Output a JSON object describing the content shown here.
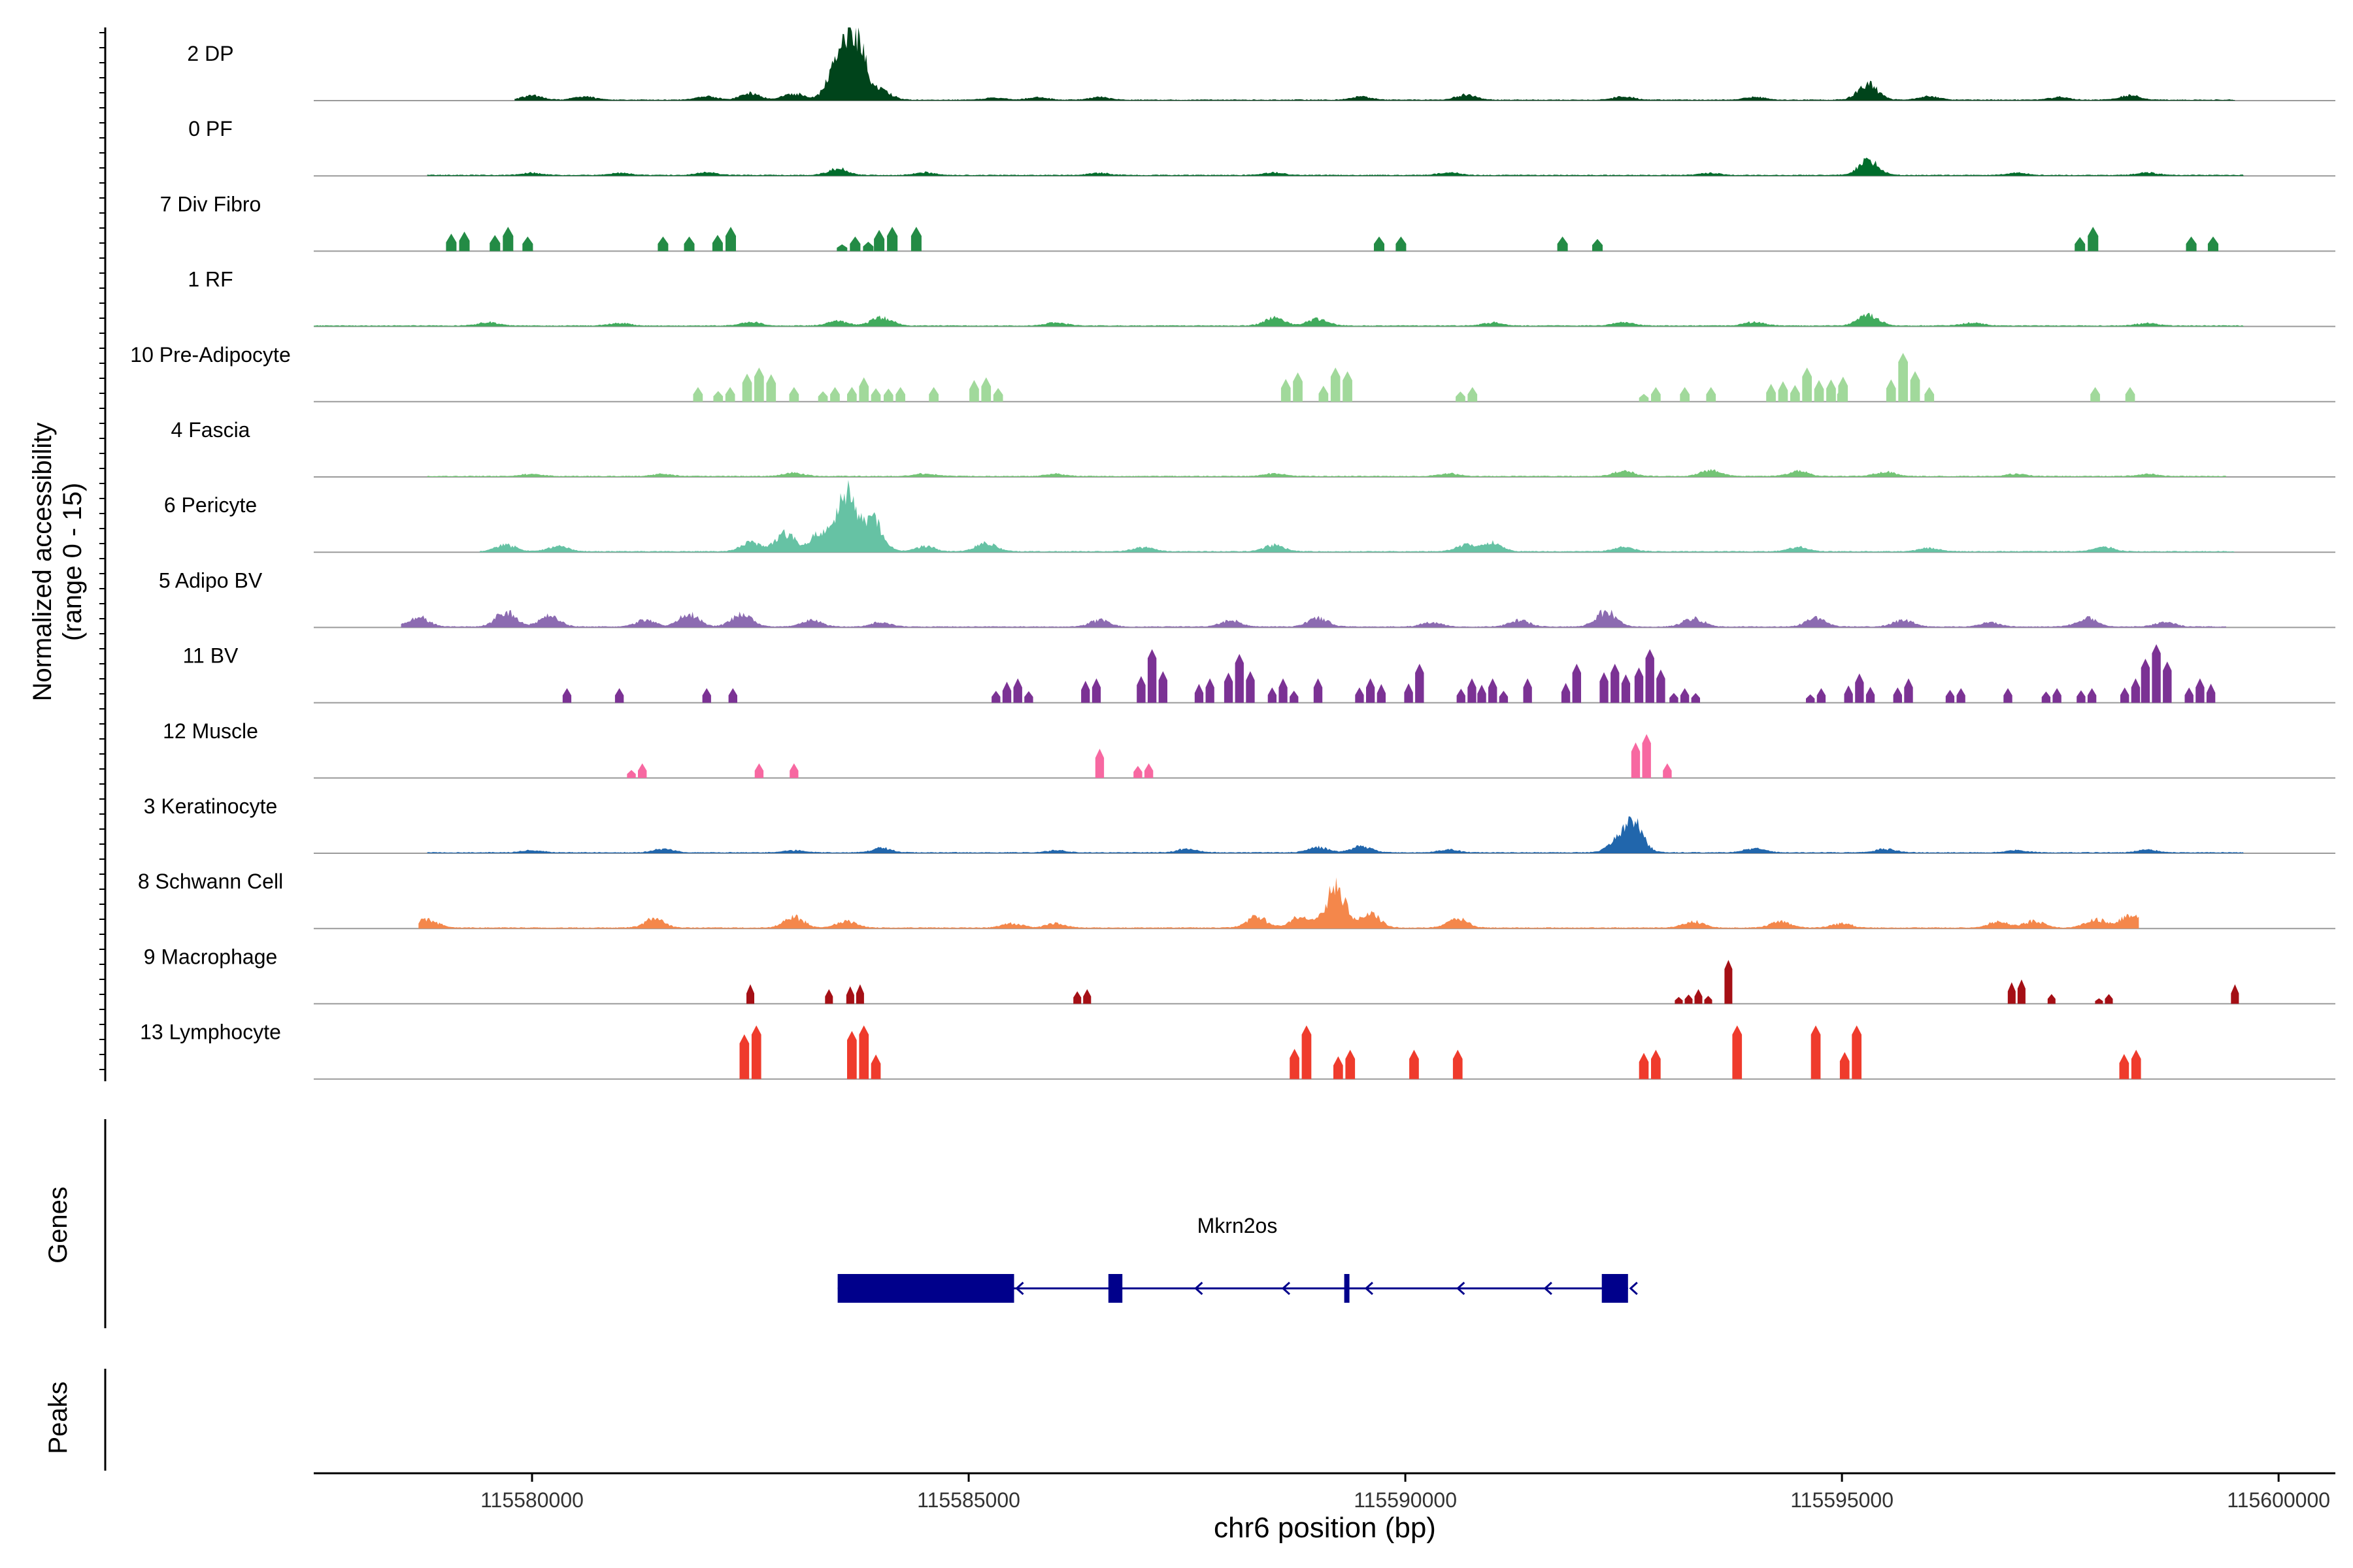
{
  "chart_data": {
    "type": "area",
    "title": "",
    "ylabel_line1": "Normalized accessibility",
    "ylabel_line2": "(range 0 - 15)",
    "y_range": [
      0,
      15
    ],
    "xlabel": "chr6 position (bp)",
    "x_range": [
      115577500,
      115600650
    ],
    "x_ticks": [
      115580000,
      115585000,
      115590000,
      115595000,
      115600000
    ],
    "x_tick_labels": [
      "115580000",
      "115585000",
      "115590000",
      "115595000",
      "115600000"
    ],
    "genes_label": "Genes",
    "peaks_label": "Peaks",
    "tracks": [
      {
        "name": "2 DP",
        "color": "#00441b",
        "mode": "cont",
        "start": 115579800,
        "end": 115599500,
        "clusters": [
          [
            115580000,
            1.0
          ],
          [
            115580600,
            0.8
          ],
          [
            115582000,
            0.8
          ],
          [
            115582500,
            1.5
          ],
          [
            115583000,
            1.5
          ],
          [
            115583500,
            8.0
          ],
          [
            115583700,
            14.0
          ],
          [
            115584000,
            2.0
          ],
          [
            115585300,
            0.5
          ],
          [
            115585800,
            0.6
          ],
          [
            115586500,
            0.6
          ],
          [
            115589500,
            0.7
          ],
          [
            115590700,
            1.2
          ],
          [
            115592500,
            0.8
          ],
          [
            115594000,
            0.7
          ],
          [
            115595300,
            3.5
          ],
          [
            115596000,
            0.8
          ],
          [
            115597500,
            0.6
          ],
          [
            115598300,
            1.0
          ]
        ]
      },
      {
        "name": "0 PF",
        "color": "#006d2c",
        "mode": "cont",
        "start": 115578800,
        "end": 115599600,
        "clusters": [
          [
            115580000,
            0.5
          ],
          [
            115581000,
            0.5
          ],
          [
            115582000,
            0.6
          ],
          [
            115583500,
            1.5
          ],
          [
            115584500,
            0.6
          ],
          [
            115586500,
            0.5
          ],
          [
            115588500,
            0.6
          ],
          [
            115590500,
            0.6
          ],
          [
            115593500,
            0.5
          ],
          [
            115595300,
            3.5
          ],
          [
            115597000,
            0.5
          ],
          [
            115598500,
            0.6
          ]
        ]
      },
      {
        "name": "7 Div Fibro",
        "color": "#238b45",
        "mode": "blocks",
        "width": 120,
        "clusters": [
          [
            115579150,
            4.0,
            2
          ],
          [
            115579650,
            5.0,
            2
          ],
          [
            115579950,
            3.0,
            1
          ],
          [
            115581500,
            3.0,
            1
          ],
          [
            115581800,
            3.0,
            1
          ],
          [
            115582200,
            5.0,
            2
          ],
          [
            115583700,
            3.0,
            3
          ],
          [
            115584050,
            5.0,
            2
          ],
          [
            115584400,
            5.0,
            1
          ],
          [
            115589700,
            3.0,
            1
          ],
          [
            115589950,
            3.0,
            1
          ],
          [
            115591800,
            3.0,
            1
          ],
          [
            115592200,
            2.5,
            1
          ],
          [
            115597800,
            5.0,
            2
          ],
          [
            115599000,
            3.0,
            1
          ],
          [
            115599250,
            3.0,
            1
          ]
        ]
      },
      {
        "name": "1 RF",
        "color": "#41ab5d",
        "mode": "cont",
        "start": 115577500,
        "end": 115599600,
        "clusters": [
          [
            115579500,
            0.8
          ],
          [
            115581000,
            0.6
          ],
          [
            115582500,
            0.8
          ],
          [
            115583500,
            1.0
          ],
          [
            115584000,
            2.0
          ],
          [
            115586000,
            0.7
          ],
          [
            115588500,
            1.8
          ],
          [
            115589000,
            1.5
          ],
          [
            115591000,
            0.7
          ],
          [
            115592500,
            0.8
          ],
          [
            115594000,
            0.8
          ],
          [
            115595300,
            2.5
          ],
          [
            115596500,
            0.7
          ],
          [
            115598500,
            0.6
          ]
        ]
      },
      {
        "name": "10 Pre-Adipocyte",
        "color": "#a1d99b",
        "mode": "blocks",
        "width": 110,
        "clusters": [
          [
            115581900,
            3.0,
            1
          ],
          [
            115582200,
            3.0,
            2
          ],
          [
            115582600,
            7.0,
            3
          ],
          [
            115583000,
            3.0,
            1
          ],
          [
            115583400,
            3.0,
            2
          ],
          [
            115583800,
            5.0,
            3
          ],
          [
            115584150,
            3.0,
            2
          ],
          [
            115584600,
            3.0,
            1
          ],
          [
            115585200,
            5.0,
            3
          ],
          [
            115588700,
            6.0,
            2
          ],
          [
            115589200,
            7.0,
            3
          ],
          [
            115590700,
            3.0,
            2
          ],
          [
            115592800,
            3.0,
            2
          ],
          [
            115593200,
            3.0,
            1
          ],
          [
            115593500,
            3.0,
            1
          ],
          [
            115594600,
            7.0,
            7
          ],
          [
            115595000,
            3.0,
            1
          ],
          [
            115595700,
            10.0,
            3
          ],
          [
            115596000,
            3.0,
            1
          ],
          [
            115597900,
            3.0,
            1
          ],
          [
            115598300,
            3.0,
            1
          ]
        ]
      },
      {
        "name": "4 Fascia",
        "color": "#74c476",
        "mode": "cont",
        "start": 115578800,
        "end": 115599400,
        "clusters": [
          [
            115580000,
            0.5
          ],
          [
            115581500,
            0.5
          ],
          [
            115583000,
            0.8
          ],
          [
            115584500,
            0.6
          ],
          [
            115586000,
            0.5
          ],
          [
            115588500,
            0.6
          ],
          [
            115590500,
            0.6
          ],
          [
            115592500,
            1.2
          ],
          [
            115593500,
            1.5
          ],
          [
            115594500,
            1.2
          ],
          [
            115595500,
            1.0
          ],
          [
            115597000,
            0.5
          ],
          [
            115598500,
            0.5
          ]
        ]
      },
      {
        "name": "6 Pericyte",
        "color": "#66c2a4",
        "mode": "cont",
        "start": 115579400,
        "end": 115599500,
        "clusters": [
          [
            115579700,
            1.5
          ],
          [
            115580300,
            1.2
          ],
          [
            115582500,
            2.0
          ],
          [
            115582900,
            4.0
          ],
          [
            115583300,
            4.0
          ],
          [
            115583600,
            13.0
          ],
          [
            115583900,
            7.0
          ],
          [
            115584500,
            1.2
          ],
          [
            115585200,
            2.0
          ],
          [
            115587000,
            1.0
          ],
          [
            115588500,
            1.5
          ],
          [
            115590700,
            1.5
          ],
          [
            115591000,
            2.0
          ],
          [
            115592500,
            1.0
          ],
          [
            115594500,
            1.0
          ],
          [
            115596000,
            0.8
          ],
          [
            115598000,
            1.0
          ]
        ]
      },
      {
        "name": "5 Adipo BV",
        "color": "#8c6bb1",
        "mode": "cont",
        "start": 115578500,
        "end": 115599400,
        "clusters": [
          [
            115578700,
            2.5
          ],
          [
            115579700,
            3.5
          ],
          [
            115580200,
            2.5
          ],
          [
            115581300,
            1.5
          ],
          [
            115581800,
            3.0
          ],
          [
            115582400,
            3.0
          ],
          [
            115583200,
            1.5
          ],
          [
            115584000,
            1.0
          ],
          [
            115586500,
            1.5
          ],
          [
            115588000,
            1.5
          ],
          [
            115589000,
            2.0
          ],
          [
            115590300,
            1.0
          ],
          [
            115591300,
            1.5
          ],
          [
            115592300,
            3.5
          ],
          [
            115593300,
            2.0
          ],
          [
            115594700,
            2.0
          ],
          [
            115595700,
            1.5
          ],
          [
            115596700,
            1.0
          ],
          [
            115597800,
            2.0
          ],
          [
            115598700,
            1.0
          ]
        ]
      },
      {
        "name": "11 BV",
        "color": "#7b3294",
        "mode": "blocks",
        "width": 100,
        "clusters": [
          [
            115580400,
            3.0,
            1
          ],
          [
            115581000,
            3.0,
            1
          ],
          [
            115582000,
            3.0,
            1
          ],
          [
            115582300,
            3.0,
            1
          ],
          [
            115585500,
            5.0,
            4
          ],
          [
            115586400,
            5.0,
            2
          ],
          [
            115587100,
            11.0,
            3
          ],
          [
            115587700,
            5.0,
            2
          ],
          [
            115588100,
            10.0,
            3
          ],
          [
            115588600,
            5.0,
            3
          ],
          [
            115589000,
            5.0,
            1
          ],
          [
            115589600,
            5.0,
            3
          ],
          [
            115590100,
            8.0,
            2
          ],
          [
            115590700,
            5.0,
            2
          ],
          [
            115591000,
            5.0,
            3
          ],
          [
            115591400,
            5.0,
            1
          ],
          [
            115591900,
            8.0,
            2
          ],
          [
            115592400,
            8.0,
            3
          ],
          [
            115592800,
            11.0,
            3
          ],
          [
            115593200,
            3.0,
            3
          ],
          [
            115594700,
            3.0,
            2
          ],
          [
            115595200,
            6.0,
            3
          ],
          [
            115595700,
            5.0,
            2
          ],
          [
            115596300,
            3.0,
            2
          ],
          [
            115596900,
            3.0,
            1
          ],
          [
            115597400,
            3.0,
            2
          ],
          [
            115597800,
            3.0,
            2
          ],
          [
            115598300,
            5.0,
            2
          ],
          [
            115598600,
            12.0,
            3
          ],
          [
            115599100,
            5.0,
            3
          ]
        ]
      },
      {
        "name": "12 Muscle",
        "color": "#f768a1",
        "mode": "blocks",
        "width": 100,
        "clusters": [
          [
            115581200,
            3.0,
            2
          ],
          [
            115582600,
            3.0,
            1
          ],
          [
            115583000,
            3.0,
            1
          ],
          [
            115586500,
            6.0,
            1
          ],
          [
            115587000,
            3.0,
            2
          ],
          [
            115592700,
            9.0,
            2
          ],
          [
            115593000,
            3.0,
            1
          ]
        ]
      },
      {
        "name": "3 Keratinocyte",
        "color": "#2166ac",
        "mode": "cont",
        "start": 115578800,
        "end": 115599600,
        "clusters": [
          [
            115580000,
            0.5
          ],
          [
            115581500,
            0.8
          ],
          [
            115583000,
            0.5
          ],
          [
            115584000,
            1.0
          ],
          [
            115586000,
            0.5
          ],
          [
            115587500,
            0.8
          ],
          [
            115589000,
            1.2
          ],
          [
            115589500,
            1.5
          ],
          [
            115590500,
            0.6
          ],
          [
            115592600,
            7.0
          ],
          [
            115592400,
            1.5
          ],
          [
            115594000,
            1.0
          ],
          [
            115595500,
            0.8
          ],
          [
            115597000,
            0.5
          ],
          [
            115598500,
            0.6
          ]
        ]
      },
      {
        "name": "8 Schwann Cell",
        "color": "#f4874b",
        "mode": "cont",
        "start": 115578700,
        "end": 115598400,
        "clusters": [
          [
            115578800,
            2.0
          ],
          [
            115581400,
            2.0
          ],
          [
            115583000,
            2.5
          ],
          [
            115583600,
            1.5
          ],
          [
            115585500,
            1.0
          ],
          [
            115586000,
            1.0
          ],
          [
            115588300,
            2.5
          ],
          [
            115588800,
            2.5
          ],
          [
            115589200,
            9.0
          ],
          [
            115589600,
            3.0
          ],
          [
            115590600,
            2.0
          ],
          [
            115593300,
            1.5
          ],
          [
            115594300,
            1.5
          ],
          [
            115595000,
            1.0
          ],
          [
            115596800,
            1.5
          ],
          [
            115597200,
            1.5
          ],
          [
            115597900,
            2.0
          ],
          [
            115598300,
            3.0
          ]
        ]
      },
      {
        "name": "9 Macrophage",
        "color": "#a50f15",
        "mode": "blocks",
        "width": 90,
        "clusters": [
          [
            115582500,
            4.0,
            1
          ],
          [
            115583400,
            3.0,
            1
          ],
          [
            115583700,
            4.0,
            2
          ],
          [
            115586300,
            3.0,
            2
          ],
          [
            115593300,
            3.0,
            4
          ],
          [
            115593700,
            9.0,
            1
          ],
          [
            115597000,
            5.0,
            2
          ],
          [
            115597400,
            2.0,
            1
          ],
          [
            115598000,
            2.0,
            2
          ],
          [
            115599500,
            4.0,
            1
          ]
        ]
      },
      {
        "name": "13 Lymphocyte",
        "color": "#ef3b2c",
        "mode": "blocks",
        "width": 110,
        "clusters": [
          [
            115582500,
            11.0,
            2
          ],
          [
            115583800,
            11.0,
            3
          ],
          [
            115588800,
            11.0,
            2
          ],
          [
            115589300,
            6.0,
            2
          ],
          [
            115590100,
            6.0,
            1
          ],
          [
            115590600,
            6.0,
            1
          ],
          [
            115592800,
            6.0,
            2
          ],
          [
            115593800,
            11.0,
            1
          ],
          [
            115594700,
            11.0,
            1
          ],
          [
            115595100,
            11.0,
            2
          ],
          [
            115598300,
            6.0,
            2
          ]
        ]
      }
    ],
    "gene": {
      "name": "Mkrn2os",
      "color": "#00008b",
      "strand": "-",
      "start": 115583500,
      "end": 115592550,
      "exons": [
        [
          115583500,
          115585520
        ],
        [
          115586600,
          115586760
        ],
        [
          115589300,
          115589360
        ],
        [
          115592250,
          115592550
        ]
      ],
      "arrows": [
        115585550,
        115587600,
        115588600,
        115589550,
        115590600,
        115591600,
        115592580
      ]
    }
  }
}
